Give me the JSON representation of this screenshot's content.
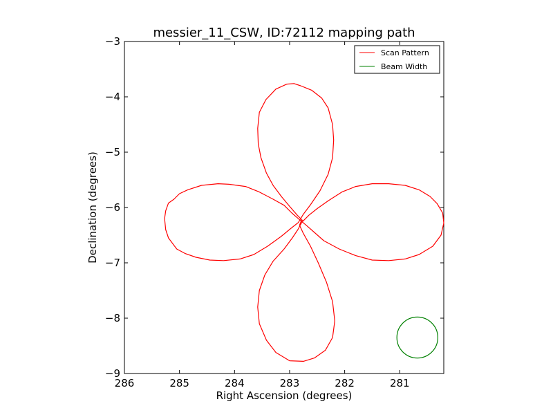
{
  "chart_data": {
    "type": "line",
    "title": "messier_11_CSW, ID:72112 mapping path",
    "xlabel": "Right Ascension (degrees)",
    "ylabel": "Declination (degrees)",
    "xlim": [
      286,
      280.2
    ],
    "ylim": [
      -9,
      -3
    ],
    "x_ticks": [
      286,
      285,
      284,
      283,
      282,
      281
    ],
    "x_tick_labels": [
      "286",
      "285",
      "284",
      "283",
      "282",
      "281"
    ],
    "y_ticks": [
      -3,
      -4,
      -5,
      -6,
      -7,
      -8,
      -9
    ],
    "y_tick_labels": [
      "−3",
      "−4",
      "−5",
      "−6",
      "−7",
      "−8",
      "−9"
    ],
    "legend_position": "upper-right",
    "series": [
      {
        "name": "Scan Pattern",
        "color": "#ff0000",
        "points": [
          [
            282.75,
            -6.25
          ],
          [
            282.86,
            -6.14
          ],
          [
            283.0,
            -5.98
          ],
          [
            283.15,
            -5.8
          ],
          [
            283.3,
            -5.6
          ],
          [
            283.42,
            -5.38
          ],
          [
            283.52,
            -5.1
          ],
          [
            283.57,
            -4.85
          ],
          [
            283.58,
            -4.57
          ],
          [
            283.55,
            -4.28
          ],
          [
            283.43,
            -4.05
          ],
          [
            283.25,
            -3.86
          ],
          [
            283.05,
            -3.77
          ],
          [
            282.92,
            -3.76
          ],
          [
            282.8,
            -3.8
          ],
          [
            282.6,
            -3.88
          ],
          [
            282.42,
            -4.02
          ],
          [
            282.3,
            -4.2
          ],
          [
            282.22,
            -4.5
          ],
          [
            282.2,
            -4.78
          ],
          [
            282.22,
            -5.1
          ],
          [
            282.3,
            -5.4
          ],
          [
            282.45,
            -5.7
          ],
          [
            282.62,
            -5.95
          ],
          [
            282.75,
            -6.12
          ],
          [
            282.84,
            -6.27
          ],
          [
            282.98,
            -6.38
          ],
          [
            283.15,
            -6.52
          ],
          [
            283.4,
            -6.7
          ],
          [
            283.65,
            -6.85
          ],
          [
            283.9,
            -6.93
          ],
          [
            284.2,
            -6.96
          ],
          [
            284.45,
            -6.95
          ],
          [
            284.7,
            -6.9
          ],
          [
            284.9,
            -6.83
          ],
          [
            285.05,
            -6.75
          ],
          [
            285.2,
            -6.55
          ],
          [
            285.25,
            -6.4
          ],
          [
            285.27,
            -6.2
          ],
          [
            285.25,
            -6.06
          ],
          [
            285.2,
            -5.92
          ],
          [
            285.1,
            -5.85
          ],
          [
            285.0,
            -5.75
          ],
          [
            284.85,
            -5.68
          ],
          [
            284.6,
            -5.6
          ],
          [
            284.3,
            -5.57
          ],
          [
            284.1,
            -5.58
          ],
          [
            283.8,
            -5.62
          ],
          [
            283.55,
            -5.72
          ],
          [
            283.3,
            -5.85
          ],
          [
            283.1,
            -5.96
          ],
          [
            282.96,
            -6.1
          ],
          [
            282.82,
            -6.22
          ],
          [
            282.7,
            -6.32
          ],
          [
            282.55,
            -6.45
          ],
          [
            282.38,
            -6.6
          ],
          [
            282.1,
            -6.75
          ],
          [
            281.8,
            -6.87
          ],
          [
            281.5,
            -6.95
          ],
          [
            281.2,
            -6.96
          ],
          [
            280.9,
            -6.93
          ],
          [
            280.65,
            -6.85
          ],
          [
            280.4,
            -6.7
          ],
          [
            280.25,
            -6.5
          ],
          [
            280.2,
            -6.28
          ],
          [
            280.22,
            -6.1
          ],
          [
            280.32,
            -5.93
          ],
          [
            280.45,
            -5.8
          ],
          [
            280.65,
            -5.68
          ],
          [
            280.9,
            -5.6
          ],
          [
            281.2,
            -5.57
          ],
          [
            281.5,
            -5.57
          ],
          [
            281.8,
            -5.62
          ],
          [
            282.05,
            -5.72
          ],
          [
            282.3,
            -5.88
          ],
          [
            282.5,
            -6.02
          ],
          [
            282.65,
            -6.14
          ],
          [
            282.78,
            -6.27
          ],
          [
            282.85,
            -6.4
          ],
          [
            282.95,
            -6.55
          ],
          [
            283.1,
            -6.75
          ],
          [
            283.3,
            -6.97
          ],
          [
            283.45,
            -7.22
          ],
          [
            283.55,
            -7.5
          ],
          [
            283.58,
            -7.8
          ],
          [
            283.55,
            -8.1
          ],
          [
            283.42,
            -8.4
          ],
          [
            283.25,
            -8.62
          ],
          [
            283.0,
            -8.77
          ],
          [
            282.75,
            -8.78
          ],
          [
            282.55,
            -8.72
          ],
          [
            282.35,
            -8.58
          ],
          [
            282.22,
            -8.35
          ],
          [
            282.18,
            -8.05
          ],
          [
            282.22,
            -7.7
          ],
          [
            282.33,
            -7.35
          ],
          [
            282.48,
            -7.0
          ],
          [
            282.62,
            -6.7
          ],
          [
            282.75,
            -6.47
          ],
          [
            282.82,
            -6.32
          ],
          [
            282.78,
            -6.22
          ]
        ]
      },
      {
        "name": "Beam Width",
        "color": "#008000",
        "center": [
          280.68,
          -8.35
        ],
        "radius_deg": 0.37
      }
    ]
  }
}
